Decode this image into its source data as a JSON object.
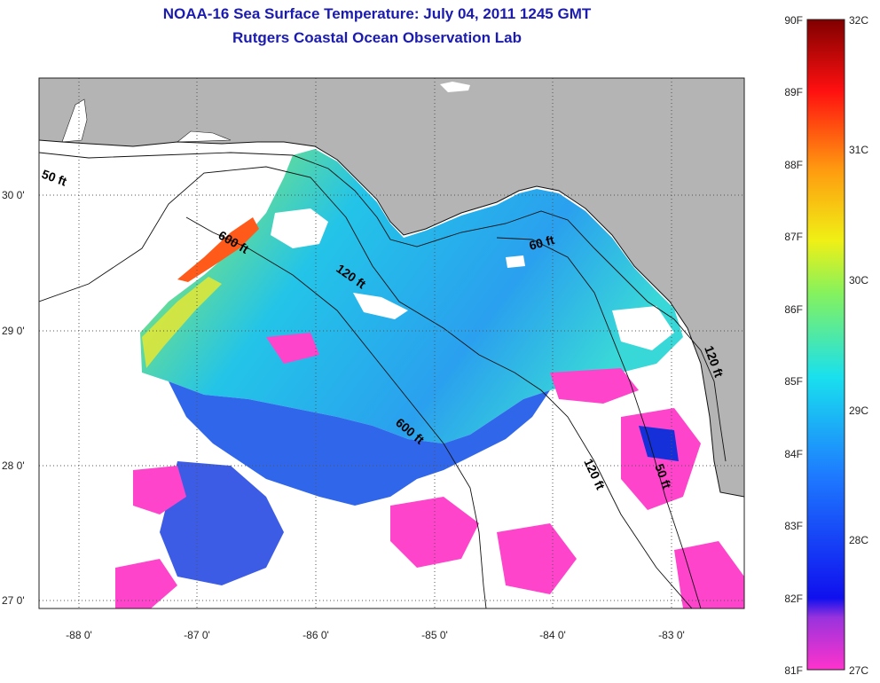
{
  "title": "NOAA-16 Sea Surface Temperature:  July 04, 2011 1245 GMT",
  "subtitle": "Rutgers Coastal Ocean Observation Lab",
  "map": {
    "lon_ticks": [
      "-88 0'",
      "-87 0'",
      "-86 0'",
      "-85 0'",
      "-84 0'",
      "-83 0'"
    ],
    "lat_ticks": [
      "30 0'",
      "29 0'",
      "28 0'",
      "27 0'"
    ],
    "colors": {
      "land": "#b4b4b4",
      "nodata": "#ffffff",
      "grid": "#555555"
    }
  },
  "colorbar": {
    "f_labels": [
      "90F",
      "89F",
      "88F",
      "87F",
      "86F",
      "85F",
      "84F",
      "83F",
      "82F",
      "81F"
    ],
    "c_labels": [
      "32C",
      "31C",
      "30C",
      "29C",
      "28C",
      "27C"
    ],
    "range_f": [
      81,
      90
    ],
    "range_c": [
      27,
      32
    ]
  },
  "contours": [
    "50 ft",
    "600 ft",
    "120 ft",
    "60 ft",
    "120 ft",
    "600 ft",
    "120 ft",
    "50 ft"
  ]
}
